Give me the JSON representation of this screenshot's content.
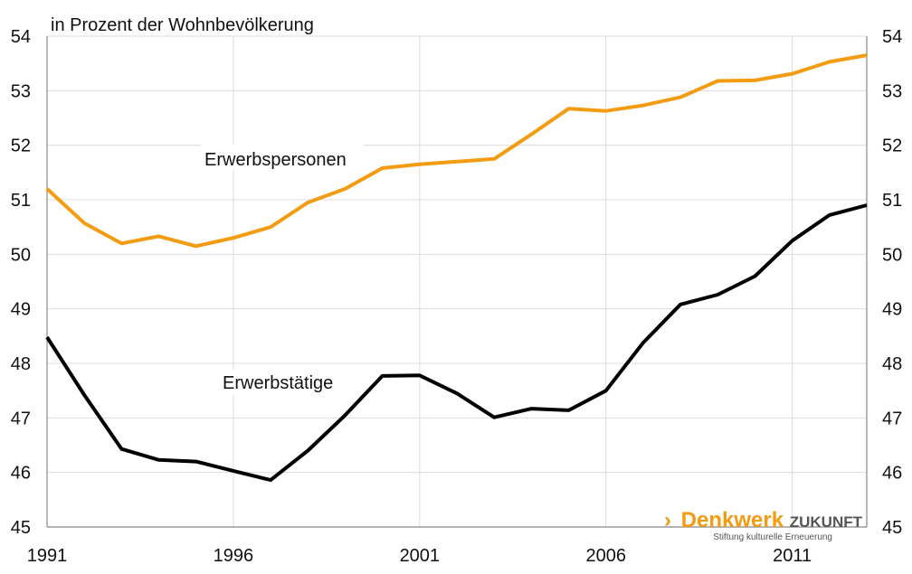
{
  "chart_data": {
    "type": "line",
    "ylabel": "in Prozent der Wohnbevölkerung",
    "ylim": [
      45,
      54
    ],
    "xlim": [
      1991,
      2013
    ],
    "y_ticks": [
      45,
      46,
      47,
      48,
      49,
      50,
      51,
      52,
      53,
      54
    ],
    "x_ticks": [
      1991,
      1996,
      2001,
      2006,
      2011
    ],
    "grid": true,
    "right_axis": true,
    "x": [
      1991,
      1992,
      1993,
      1994,
      1995,
      1996,
      1997,
      1998,
      1999,
      2000,
      2001,
      2002,
      2003,
      2004,
      2005,
      2006,
      2007,
      2008,
      2009,
      2010,
      2011,
      2012,
      2013
    ],
    "series": [
      {
        "name": "Erwerbspersonen",
        "color": "#f39c12",
        "values": [
          51.2,
          50.57,
          50.2,
          50.33,
          50.15,
          50.3,
          50.5,
          50.95,
          51.2,
          51.58,
          51.65,
          51.7,
          51.75,
          52.2,
          52.67,
          52.63,
          52.73,
          52.88,
          53.18,
          53.19,
          53.31,
          53.53,
          53.65
        ]
      },
      {
        "name": "Erwerbstätige",
        "color": "#000000",
        "values": [
          48.48,
          47.42,
          46.43,
          46.23,
          46.2,
          46.03,
          45.86,
          46.4,
          47.05,
          47.77,
          47.78,
          47.45,
          47.01,
          47.17,
          47.14,
          47.5,
          48.38,
          49.08,
          49.26,
          49.6,
          50.25,
          50.72,
          50.9
        ]
      }
    ]
  },
  "logo": {
    "arrow": "›",
    "word1": "Denkwerk",
    "word2": "ZUKUNFT",
    "tagline": "Stiftung kulturelle Erneuerung",
    "color1": "#f39c12",
    "color2": "#555555"
  }
}
